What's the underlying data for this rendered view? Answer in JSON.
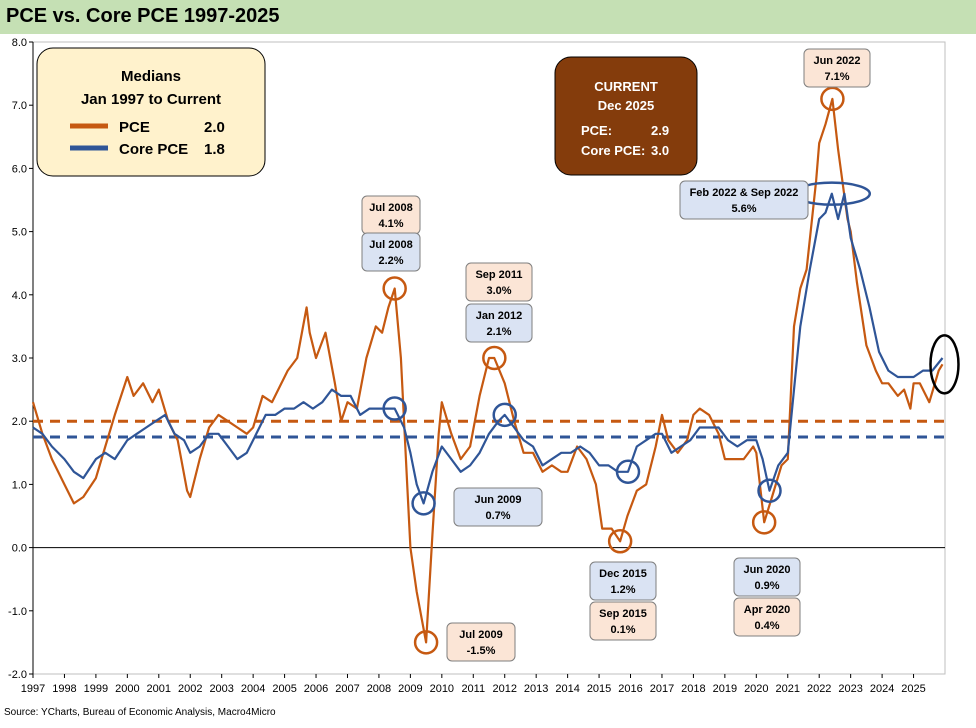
{
  "title": "PCE vs. Core PCE 1997-2025",
  "source": "Source: YCharts, Bureau of Economic Analysis, Macro4Micro",
  "colors": {
    "pce": "#c65911",
    "core": "#2f5597",
    "background": "#c5e0b4"
  },
  "medians_box": {
    "title1": "Medians",
    "title2": "Jan 1997 to Current",
    "pce_label": "PCE",
    "pce_value": "2.0",
    "core_label": "Core PCE",
    "core_value": "1.8"
  },
  "current_box": {
    "title1": "CURRENT",
    "title2": "Dec 2025",
    "pce_label": "PCE:",
    "pce_value": "2.9",
    "core_label": "Core PCE:",
    "core_value": "3.0"
  },
  "callouts": [
    {
      "l1": "Jul 2008",
      "l2": "4.1%",
      "series": "pce",
      "x": 2008.5,
      "y": 4.1
    },
    {
      "l1": "Jul 2008",
      "l2": "2.2%",
      "series": "core",
      "x": 2008.5,
      "y": 2.2
    },
    {
      "l1": "Sep 2011",
      "l2": "3.0%",
      "series": "pce",
      "x": 2011.67,
      "y": 3.0
    },
    {
      "l1": "Jan 2012",
      "l2": "2.1%",
      "series": "core",
      "x": 2012.0,
      "y": 2.1
    },
    {
      "l1": "Jun 2009",
      "l2": "0.7%",
      "series": "core",
      "x": 2009.42,
      "y": 0.7
    },
    {
      "l1": "Jul 2009",
      "l2": "-1.5%",
      "series": "pce",
      "x": 2009.5,
      "y": -1.5
    },
    {
      "l1": "Dec 2015",
      "l2": "1.2%",
      "series": "core",
      "x": 2015.92,
      "y": 1.2
    },
    {
      "l1": "Sep 2015",
      "l2": "0.1%",
      "series": "pce",
      "x": 2015.67,
      "y": 0.1
    },
    {
      "l1": "Jun 2020",
      "l2": "0.9%",
      "series": "core",
      "x": 2020.42,
      "y": 0.9
    },
    {
      "l1": "Apr 2020",
      "l2": "0.4%",
      "series": "pce",
      "x": 2020.25,
      "y": 0.4
    },
    {
      "l1": "Feb 2022 & Sep 2022",
      "l2": "5.6%",
      "series": "core",
      "x": 2022.4,
      "y": 5.6
    },
    {
      "l1": "Jun 2022",
      "l2": "7.1%",
      "series": "pce",
      "x": 2022.42,
      "y": 7.1
    }
  ],
  "chart_data": {
    "type": "line",
    "title": "PCE vs. Core PCE 1997-2025",
    "ylim": [
      -2.0,
      8.0
    ],
    "yticks": [
      "8.0",
      "7.0",
      "6.0",
      "5.0",
      "4.0",
      "3.0",
      "2.0",
      "1.0",
      "0.0",
      "-1.0",
      "-2.0"
    ],
    "xlim": [
      1997,
      2026
    ],
    "xticks": [
      "1997",
      "1998",
      "1999",
      "2000",
      "2001",
      "2002",
      "2003",
      "2004",
      "2005",
      "2006",
      "2007",
      "2008",
      "2009",
      "2010",
      "2011",
      "2012",
      "2013",
      "2014",
      "2015",
      "2016",
      "2017",
      "2018",
      "2019",
      "2020",
      "2021",
      "2022",
      "2023",
      "2024",
      "2025"
    ],
    "grid": false,
    "series": [
      {
        "name": "PCE",
        "x": [
          1997.0,
          1997.3,
          1997.6,
          1998.0,
          1998.3,
          1998.6,
          1999.0,
          1999.3,
          1999.6,
          2000.0,
          2000.2,
          2000.5,
          2000.8,
          2001.0,
          2001.3,
          2001.6,
          2001.9,
          2002.0,
          2002.3,
          2002.6,
          2002.9,
          2003.2,
          2003.5,
          2003.8,
          2004.0,
          2004.3,
          2004.6,
          2004.9,
          2005.1,
          2005.4,
          2005.7,
          2005.8,
          2006.0,
          2006.3,
          2006.6,
          2006.8,
          2007.0,
          2007.3,
          2007.6,
          2007.9,
          2008.1,
          2008.3,
          2008.5,
          2008.7,
          2008.9,
          2009.0,
          2009.2,
          2009.5,
          2009.7,
          2009.9,
          2010.0,
          2010.3,
          2010.6,
          2010.9,
          2011.2,
          2011.5,
          2011.67,
          2012.0,
          2012.3,
          2012.6,
          2012.9,
          2013.2,
          2013.5,
          2013.8,
          2014.0,
          2014.3,
          2014.6,
          2014.9,
          2015.1,
          2015.4,
          2015.67,
          2015.9,
          2016.2,
          2016.5,
          2016.8,
          2017.0,
          2017.2,
          2017.5,
          2017.8,
          2018.0,
          2018.2,
          2018.5,
          2018.8,
          2019.0,
          2019.3,
          2019.6,
          2019.9,
          2020.0,
          2020.25,
          2020.5,
          2020.8,
          2021.0,
          2021.2,
          2021.4,
          2021.6,
          2021.9,
          2022.0,
          2022.2,
          2022.42,
          2022.6,
          2022.9,
          2023.0,
          2023.2,
          2023.5,
          2023.8,
          2024.0,
          2024.2,
          2024.5,
          2024.7,
          2024.9,
          2025.0,
          2025.2,
          2025.5,
          2025.8,
          2025.92
        ],
        "values": [
          2.3,
          1.8,
          1.4,
          1.0,
          0.7,
          0.8,
          1.1,
          1.6,
          2.1,
          2.7,
          2.4,
          2.6,
          2.3,
          2.5,
          2.0,
          1.7,
          0.9,
          0.8,
          1.4,
          1.9,
          2.1,
          2.0,
          1.9,
          1.8,
          1.9,
          2.4,
          2.3,
          2.6,
          2.8,
          3.0,
          3.8,
          3.4,
          3.0,
          3.4,
          2.6,
          2.0,
          2.3,
          2.2,
          3.0,
          3.5,
          3.4,
          3.8,
          4.1,
          3.0,
          1.0,
          0.0,
          -0.7,
          -1.5,
          0.2,
          1.8,
          2.3,
          1.8,
          1.4,
          1.6,
          2.4,
          3.0,
          3.0,
          2.6,
          2.0,
          1.5,
          1.5,
          1.2,
          1.3,
          1.2,
          1.2,
          1.6,
          1.4,
          1.0,
          0.3,
          0.3,
          0.1,
          0.5,
          0.9,
          1.0,
          1.6,
          2.1,
          1.7,
          1.5,
          1.7,
          2.1,
          2.2,
          2.1,
          1.8,
          1.4,
          1.4,
          1.4,
          1.6,
          1.5,
          0.4,
          0.8,
          1.3,
          1.4,
          3.5,
          4.1,
          4.4,
          5.8,
          6.4,
          6.7,
          7.1,
          6.3,
          5.2,
          5.0,
          4.2,
          3.2,
          2.8,
          2.6,
          2.6,
          2.4,
          2.5,
          2.2,
          2.6,
          2.6,
          2.3,
          2.8,
          2.9
        ]
      },
      {
        "name": "Core PCE",
        "x": [
          1997.0,
          1997.3,
          1997.6,
          1998.0,
          1998.3,
          1998.6,
          1999.0,
          1999.3,
          1999.6,
          2000.0,
          2000.3,
          2000.6,
          2000.9,
          2001.2,
          2001.5,
          2001.8,
          2002.0,
          2002.3,
          2002.6,
          2002.9,
          2003.2,
          2003.5,
          2003.8,
          2004.1,
          2004.4,
          2004.7,
          2005.0,
          2005.3,
          2005.6,
          2005.9,
          2006.2,
          2006.5,
          2006.8,
          2007.1,
          2007.4,
          2007.7,
          2008.0,
          2008.2,
          2008.5,
          2008.8,
          2009.0,
          2009.2,
          2009.42,
          2009.7,
          2010.0,
          2010.3,
          2010.6,
          2010.9,
          2011.2,
          2011.5,
          2011.8,
          2012.0,
          2012.3,
          2012.6,
          2012.9,
          2013.2,
          2013.5,
          2013.8,
          2014.1,
          2014.4,
          2014.7,
          2015.0,
          2015.3,
          2015.6,
          2015.92,
          2016.2,
          2016.5,
          2016.8,
          2017.0,
          2017.3,
          2017.6,
          2017.9,
          2018.2,
          2018.5,
          2018.8,
          2019.1,
          2019.4,
          2019.7,
          2020.0,
          2020.2,
          2020.42,
          2020.7,
          2021.0,
          2021.2,
          2021.4,
          2021.7,
          2022.0,
          2022.2,
          2022.4,
          2022.6,
          2022.8,
          2023.0,
          2023.3,
          2023.6,
          2023.9,
          2024.2,
          2024.5,
          2024.8,
          2025.0,
          2025.3,
          2025.6,
          2025.92
        ],
        "values": [
          1.9,
          1.8,
          1.6,
          1.4,
          1.2,
          1.1,
          1.4,
          1.5,
          1.4,
          1.7,
          1.8,
          1.9,
          2.0,
          2.1,
          1.8,
          1.7,
          1.5,
          1.6,
          1.8,
          1.8,
          1.6,
          1.4,
          1.5,
          1.8,
          2.1,
          2.1,
          2.2,
          2.2,
          2.3,
          2.2,
          2.3,
          2.5,
          2.4,
          2.4,
          2.1,
          2.2,
          2.2,
          2.2,
          2.2,
          1.9,
          1.5,
          1.0,
          0.7,
          1.2,
          1.6,
          1.4,
          1.2,
          1.3,
          1.5,
          1.8,
          2.0,
          2.1,
          1.9,
          1.7,
          1.6,
          1.3,
          1.4,
          1.5,
          1.5,
          1.6,
          1.5,
          1.3,
          1.3,
          1.2,
          1.2,
          1.6,
          1.7,
          1.8,
          1.8,
          1.5,
          1.6,
          1.7,
          1.9,
          1.9,
          1.9,
          1.7,
          1.6,
          1.7,
          1.7,
          1.4,
          0.9,
          1.3,
          1.5,
          2.5,
          3.5,
          4.4,
          5.2,
          5.3,
          5.6,
          5.2,
          5.6,
          4.9,
          4.4,
          3.8,
          3.1,
          2.8,
          2.7,
          2.7,
          2.7,
          2.8,
          2.8,
          3.0
        ]
      }
    ],
    "reference_lines": [
      {
        "name": "PCE median",
        "y": 2.0
      },
      {
        "name": "Core PCE median",
        "y": 1.75
      }
    ],
    "current_marker": {
      "x": 2025.92,
      "y": 2.9
    }
  }
}
